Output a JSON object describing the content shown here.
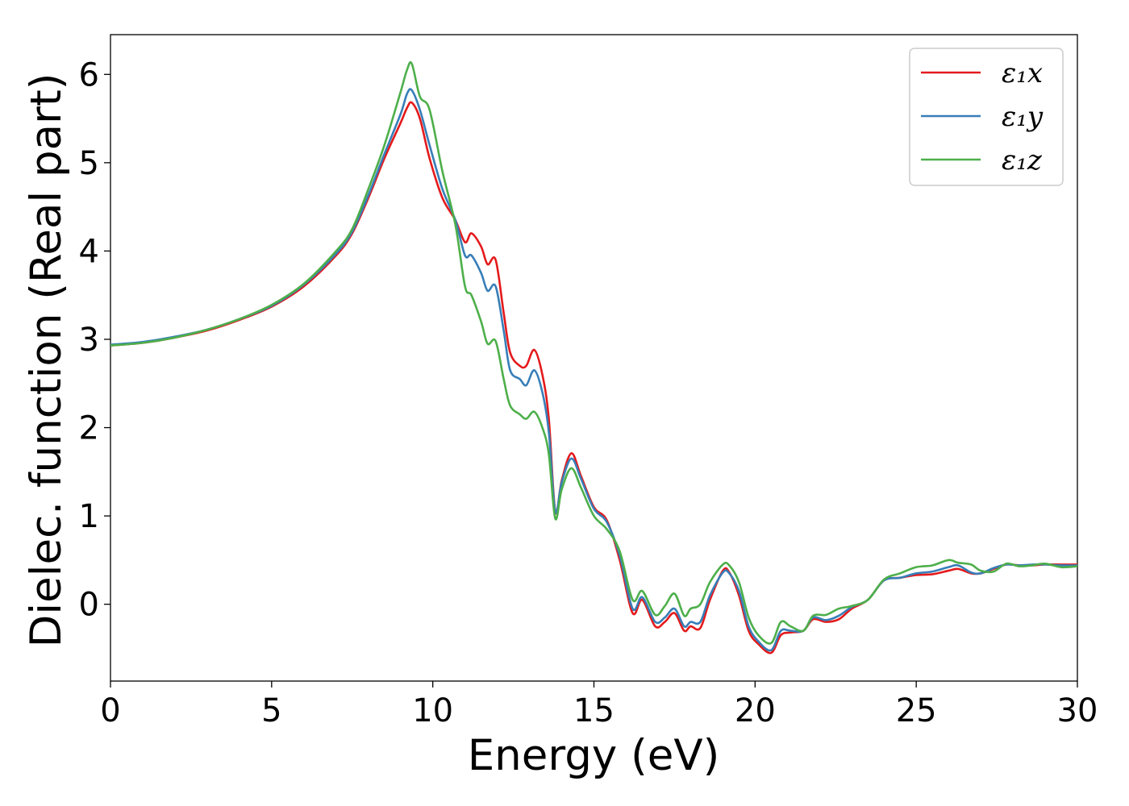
{
  "chart_data": {
    "type": "line",
    "xlabel": "Energy (eV)",
    "ylabel": "Dielec. function (Real part)",
    "xlim": [
      0,
      30
    ],
    "ylim": [
      -0.87,
      6.45
    ],
    "xticks": [
      0,
      5,
      10,
      15,
      20,
      25,
      30
    ],
    "yticks": [
      0,
      1,
      2,
      3,
      4,
      5,
      6
    ],
    "grid": false,
    "legend_position": "top-right",
    "series": [
      {
        "name": "ε₁x",
        "color": "#e41a1c",
        "x": [
          0,
          1,
          2,
          3,
          4,
          5,
          6,
          7,
          7.5,
          8,
          8.5,
          9,
          9.2,
          9.35,
          9.6,
          9.9,
          10.3,
          10.7,
          11.0,
          11.2,
          11.5,
          11.7,
          11.95,
          12.2,
          12.4,
          12.7,
          12.9,
          13.15,
          13.4,
          13.6,
          13.8,
          14.0,
          14.3,
          14.6,
          15.0,
          15.4,
          15.8,
          16.2,
          16.5,
          16.9,
          17.2,
          17.5,
          17.8,
          18.0,
          18.3,
          18.6,
          19.0,
          19.2,
          19.5,
          19.8,
          20.1,
          20.5,
          20.8,
          21.1,
          21.5,
          21.8,
          22.2,
          22.6,
          23.0,
          23.5,
          24.0,
          24.5,
          25.0,
          25.5,
          26.0,
          26.3,
          26.7,
          27.0,
          27.4,
          27.8,
          28.2,
          28.6,
          29.0,
          29.5,
          30
        ],
        "y": [
          2.93,
          2.96,
          3.02,
          3.1,
          3.22,
          3.37,
          3.6,
          3.95,
          4.2,
          4.6,
          5.05,
          5.45,
          5.62,
          5.68,
          5.5,
          5.05,
          4.6,
          4.35,
          4.1,
          4.2,
          4.05,
          3.85,
          3.9,
          3.3,
          2.85,
          2.7,
          2.7,
          2.88,
          2.6,
          2.1,
          1.05,
          1.4,
          1.71,
          1.45,
          1.1,
          0.95,
          0.5,
          -0.1,
          0.05,
          -0.25,
          -0.2,
          -0.1,
          -0.3,
          -0.25,
          -0.27,
          0.05,
          0.38,
          0.36,
          0.1,
          -0.3,
          -0.45,
          -0.55,
          -0.35,
          -0.32,
          -0.3,
          -0.17,
          -0.2,
          -0.17,
          -0.05,
          0.05,
          0.27,
          0.3,
          0.33,
          0.34,
          0.38,
          0.4,
          0.35,
          0.35,
          0.4,
          0.45,
          0.44,
          0.44,
          0.45,
          0.45,
          0.45
        ]
      },
      {
        "name": "ε₁y",
        "color": "#377eb8",
        "x": [
          0,
          1,
          2,
          3,
          4,
          5,
          6,
          7,
          7.5,
          8,
          8.5,
          9,
          9.2,
          9.35,
          9.6,
          9.9,
          10.3,
          10.7,
          11.0,
          11.2,
          11.5,
          11.7,
          11.95,
          12.2,
          12.4,
          12.7,
          12.9,
          13.15,
          13.4,
          13.6,
          13.8,
          14.0,
          14.3,
          14.6,
          15.0,
          15.4,
          15.8,
          16.2,
          16.5,
          16.9,
          17.2,
          17.5,
          17.8,
          18.0,
          18.3,
          18.6,
          19.0,
          19.2,
          19.5,
          19.8,
          20.1,
          20.5,
          20.8,
          21.1,
          21.5,
          21.8,
          22.2,
          22.6,
          23.0,
          23.5,
          24.0,
          24.5,
          25.0,
          25.5,
          26.0,
          26.3,
          26.7,
          27.0,
          27.4,
          27.8,
          28.2,
          28.6,
          29.0,
          29.5,
          30
        ],
        "y": [
          2.94,
          2.97,
          3.03,
          3.11,
          3.23,
          3.38,
          3.62,
          3.97,
          4.22,
          4.63,
          5.1,
          5.55,
          5.78,
          5.82,
          5.6,
          5.2,
          4.7,
          4.35,
          3.95,
          3.95,
          3.75,
          3.55,
          3.6,
          3.1,
          2.65,
          2.55,
          2.48,
          2.65,
          2.4,
          1.95,
          1.05,
          1.38,
          1.65,
          1.42,
          1.08,
          0.93,
          0.55,
          -0.05,
          0.08,
          -0.2,
          -0.15,
          -0.05,
          -0.25,
          -0.2,
          -0.2,
          0.1,
          0.36,
          0.35,
          0.15,
          -0.25,
          -0.42,
          -0.52,
          -0.3,
          -0.3,
          -0.3,
          -0.15,
          -0.18,
          -0.13,
          -0.03,
          0.05,
          0.27,
          0.3,
          0.35,
          0.37,
          0.42,
          0.44,
          0.36,
          0.35,
          0.41,
          0.45,
          0.44,
          0.45,
          0.45,
          0.44,
          0.44
        ]
      },
      {
        "name": "ε₁z",
        "color": "#4daf4a",
        "x": [
          0,
          1,
          2,
          3,
          4,
          5,
          6,
          7,
          7.5,
          8,
          8.5,
          9,
          9.2,
          9.35,
          9.6,
          9.9,
          10.3,
          10.7,
          11.0,
          11.2,
          11.5,
          11.7,
          11.95,
          12.2,
          12.4,
          12.7,
          12.9,
          13.15,
          13.4,
          13.6,
          13.8,
          14.0,
          14.3,
          14.6,
          15.0,
          15.4,
          15.8,
          16.2,
          16.5,
          16.9,
          17.2,
          17.5,
          17.8,
          18.0,
          18.3,
          18.6,
          19.0,
          19.2,
          19.5,
          19.8,
          20.1,
          20.5,
          20.8,
          21.1,
          21.5,
          21.8,
          22.2,
          22.6,
          23.0,
          23.5,
          24.0,
          24.5,
          25.0,
          25.5,
          26.0,
          26.3,
          26.7,
          27.0,
          27.4,
          27.8,
          28.2,
          28.6,
          29.0,
          29.5,
          30
        ],
        "y": [
          2.93,
          2.96,
          3.02,
          3.11,
          3.23,
          3.39,
          3.63,
          4.0,
          4.25,
          4.7,
          5.2,
          5.8,
          6.05,
          6.12,
          5.75,
          5.6,
          4.9,
          4.3,
          3.6,
          3.5,
          3.2,
          2.95,
          2.98,
          2.55,
          2.25,
          2.15,
          2.1,
          2.18,
          2.0,
          1.7,
          0.97,
          1.3,
          1.54,
          1.32,
          1.0,
          0.85,
          0.6,
          0.05,
          0.15,
          -0.12,
          -0.02,
          0.12,
          -0.13,
          -0.05,
          0.0,
          0.25,
          0.45,
          0.44,
          0.25,
          -0.15,
          -0.35,
          -0.44,
          -0.2,
          -0.25,
          -0.3,
          -0.13,
          -0.12,
          -0.05,
          -0.02,
          0.05,
          0.28,
          0.35,
          0.42,
          0.44,
          0.5,
          0.47,
          0.45,
          0.38,
          0.37,
          0.46,
          0.43,
          0.44,
          0.46,
          0.42,
          0.43
        ]
      }
    ]
  }
}
